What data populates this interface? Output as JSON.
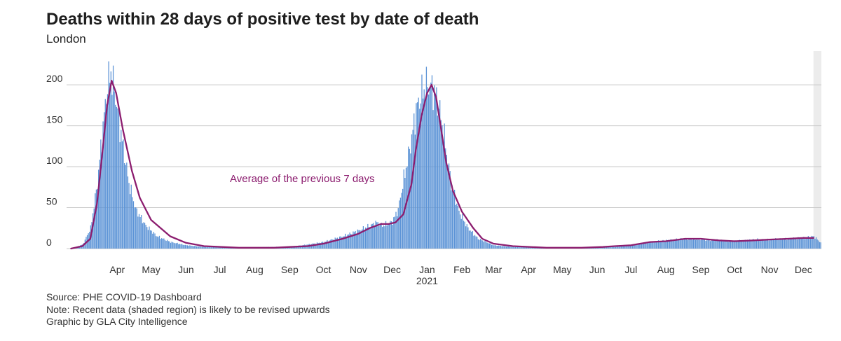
{
  "title": "Deaths within 28 days of positive test by date of death",
  "subtitle": "London",
  "chart_data": {
    "type": "bar",
    "x_start": "2020-03-01",
    "x_end": "2021-12-31",
    "ylim": [
      0,
      230
    ],
    "yticks": [
      0,
      50,
      100,
      150,
      200
    ],
    "month_labels": [
      "Apr",
      "May",
      "Jun",
      "Jul",
      "Aug",
      "Sep",
      "Oct",
      "Nov",
      "Dec",
      "Jan",
      "Feb",
      "Mar",
      "Apr",
      "May",
      "Jun",
      "Jul",
      "Aug",
      "Sep",
      "Oct",
      "Nov",
      "Dec"
    ],
    "year_label": "2021",
    "annotation": "Average of the previous 7 days",
    "shaded_region_start": "2021-12-24",
    "bar_color": "#5b93d6",
    "line_color": "#8c1d6f",
    "grid": true,
    "series": [
      {
        "kind": "bars",
        "x": [
          "2020-03-05",
          "2020-03-15",
          "2020-03-22",
          "2020-03-28",
          "2020-04-02",
          "2020-04-06",
          "2020-04-09",
          "2020-04-13",
          "2020-04-18",
          "2020-04-25",
          "2020-05-01",
          "2020-05-10",
          "2020-05-20",
          "2020-06-01",
          "2020-06-15",
          "2020-07-01",
          "2020-08-01",
          "2020-09-01",
          "2020-09-15",
          "2020-10-01",
          "2020-10-15",
          "2020-11-01",
          "2020-11-15",
          "2020-11-25",
          "2020-12-01",
          "2020-12-06",
          "2020-12-10",
          "2020-12-15",
          "2020-12-20",
          "2020-12-25",
          "2021-01-01",
          "2021-01-05",
          "2021-01-10",
          "2021-01-15",
          "2021-01-20",
          "2021-01-25",
          "2021-01-30",
          "2021-02-05",
          "2021-02-12",
          "2021-02-20",
          "2021-03-01",
          "2021-03-15",
          "2021-04-01",
          "2021-05-01",
          "2021-06-01",
          "2021-06-20",
          "2021-07-01",
          "2021-07-15",
          "2021-08-01",
          "2021-08-15",
          "2021-09-01",
          "2021-09-15",
          "2021-10-01",
          "2021-10-15",
          "2021-11-01",
          "2021-11-15",
          "2021-12-01",
          "2021-12-15",
          "2021-12-24",
          "2021-12-31"
        ],
        "values": [
          0,
          5,
          25,
          80,
          150,
          200,
          215,
          185,
          140,
          80,
          48,
          28,
          15,
          8,
          4,
          2,
          1,
          2,
          2,
          5,
          8,
          15,
          22,
          28,
          32,
          28,
          30,
          33,
          48,
          85,
          135,
          170,
          190,
          200,
          195,
          175,
          135,
          80,
          45,
          25,
          12,
          4,
          2,
          1,
          1,
          2,
          2,
          4,
          8,
          10,
          12,
          11,
          10,
          9,
          11,
          11,
          12,
          13,
          15,
          6
        ]
      },
      {
        "kind": "line",
        "name": "Average of the previous 7 days",
        "x": [
          "2020-03-05",
          "2020-03-15",
          "2020-03-22",
          "2020-03-28",
          "2020-04-02",
          "2020-04-06",
          "2020-04-10",
          "2020-04-14",
          "2020-04-20",
          "2020-04-28",
          "2020-05-05",
          "2020-05-15",
          "2020-06-01",
          "2020-06-15",
          "2020-07-01",
          "2020-08-01",
          "2020-09-01",
          "2020-09-15",
          "2020-10-01",
          "2020-10-15",
          "2020-11-01",
          "2020-11-15",
          "2020-11-25",
          "2020-12-05",
          "2020-12-12",
          "2020-12-18",
          "2020-12-25",
          "2021-01-01",
          "2021-01-05",
          "2021-01-10",
          "2021-01-15",
          "2021-01-19",
          "2021-01-23",
          "2021-01-27",
          "2021-02-01",
          "2021-02-07",
          "2021-02-15",
          "2021-02-25",
          "2021-03-05",
          "2021-03-15",
          "2021-04-01",
          "2021-05-01",
          "2021-06-01",
          "2021-06-20",
          "2021-07-01",
          "2021-07-15",
          "2021-08-01",
          "2021-08-15",
          "2021-09-01",
          "2021-09-15",
          "2021-10-01",
          "2021-10-15",
          "2021-11-01",
          "2021-11-15",
          "2021-12-01",
          "2021-12-15",
          "2021-12-24"
        ],
        "values": [
          0,
          3,
          12,
          55,
          120,
          175,
          205,
          190,
          145,
          95,
          62,
          35,
          15,
          7,
          3,
          1,
          1,
          2,
          3,
          6,
          12,
          18,
          25,
          30,
          30,
          32,
          42,
          78,
          120,
          162,
          190,
          200,
          185,
          150,
          105,
          70,
          45,
          25,
          12,
          6,
          3,
          1,
          1,
          2,
          3,
          4,
          8,
          9,
          12,
          12,
          10,
          9,
          10,
          11,
          12,
          13,
          13
        ]
      }
    ]
  },
  "footer": {
    "source": "Source: PHE COVID-19 Dashboard",
    "note": "Note: Recent data (shaded region) is likely to be revised upwards",
    "credit": "Graphic by GLA City Intelligence"
  }
}
